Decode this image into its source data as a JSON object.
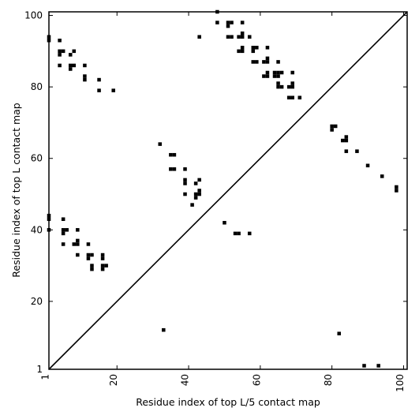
{
  "chart_data": {
    "type": "heatmap",
    "title": "",
    "xlabel": "Residue index of top L/5 contact map",
    "ylabel": "Residue index of top L contact map",
    "xlim": [
      1,
      101
    ],
    "ylim": [
      1,
      101
    ],
    "x_ticks": [
      1,
      20,
      40,
      60,
      80,
      100
    ],
    "y_ticks": [
      1,
      20,
      40,
      60,
      80,
      100
    ],
    "x_tick_labels": [
      "1",
      "20",
      "40",
      "60",
      "80",
      "100"
    ],
    "y_tick_labels": [
      "1",
      "20",
      "40",
      "60",
      "80",
      "100"
    ],
    "grid": false,
    "diagonal_line": true,
    "cell_color": "#000000",
    "background_color": "#ffffff",
    "points": [
      [
        1,
        94
      ],
      [
        1,
        93
      ],
      [
        4,
        93
      ],
      [
        4,
        90
      ],
      [
        4,
        89
      ],
      [
        5,
        90
      ],
      [
        4,
        86
      ],
      [
        7,
        89
      ],
      [
        7,
        86
      ],
      [
        7,
        85
      ],
      [
        8,
        86
      ],
      [
        8,
        90
      ],
      [
        11,
        86
      ],
      [
        11,
        83
      ],
      [
        11,
        82
      ],
      [
        15,
        82
      ],
      [
        15,
        79
      ],
      [
        19,
        79
      ],
      [
        43,
        94
      ],
      [
        48,
        101
      ],
      [
        48,
        98
      ],
      [
        51,
        98
      ],
      [
        51,
        97
      ],
      [
        52,
        98
      ],
      [
        51,
        94
      ],
      [
        52,
        94
      ],
      [
        54,
        94
      ],
      [
        55,
        95
      ],
      [
        55,
        94
      ],
      [
        55,
        98
      ],
      [
        54,
        90
      ],
      [
        55,
        90
      ],
      [
        55,
        91
      ],
      [
        57,
        94
      ],
      [
        58,
        91
      ],
      [
        58,
        90
      ],
      [
        59,
        91
      ],
      [
        58,
        87
      ],
      [
        59,
        87
      ],
      [
        61,
        87
      ],
      [
        62,
        87
      ],
      [
        62,
        88
      ],
      [
        62,
        91
      ],
      [
        61,
        83
      ],
      [
        62,
        83
      ],
      [
        62,
        84
      ],
      [
        64,
        84
      ],
      [
        65,
        84
      ],
      [
        65,
        83
      ],
      [
        64,
        83
      ],
      [
        65,
        87
      ],
      [
        66,
        84
      ],
      [
        65,
        81
      ],
      [
        65,
        80
      ],
      [
        66,
        80
      ],
      [
        68,
        80
      ],
      [
        69,
        80
      ],
      [
        69,
        81
      ],
      [
        69,
        84
      ],
      [
        68,
        77
      ],
      [
        69,
        77
      ],
      [
        71,
        77
      ],
      [
        32,
        64
      ],
      [
        35,
        61
      ],
      [
        36,
        61
      ],
      [
        35,
        57
      ],
      [
        36,
        57
      ],
      [
        39,
        57
      ],
      [
        39,
        54
      ],
      [
        39,
        53
      ],
      [
        42,
        53
      ],
      [
        43,
        54
      ],
      [
        43,
        51
      ],
      [
        43,
        50
      ],
      [
        42,
        50
      ],
      [
        42,
        49
      ],
      [
        39,
        50
      ],
      [
        41,
        47
      ],
      [
        80,
        69
      ],
      [
        81,
        69
      ],
      [
        80,
        68
      ],
      [
        83,
        65
      ],
      [
        84,
        65
      ],
      [
        84,
        66
      ],
      [
        84,
        62
      ],
      [
        87,
        62
      ],
      [
        90,
        58
      ],
      [
        94,
        55
      ],
      [
        98,
        52
      ],
      [
        98,
        51
      ],
      [
        1,
        44
      ],
      [
        1,
        43
      ],
      [
        5,
        43
      ],
      [
        1,
        40
      ],
      [
        5,
        40
      ],
      [
        6,
        40
      ],
      [
        5,
        39
      ],
      [
        9,
        40
      ],
      [
        5,
        36
      ],
      [
        8,
        36
      ],
      [
        9,
        36
      ],
      [
        9,
        37
      ],
      [
        12,
        36
      ],
      [
        9,
        33
      ],
      [
        12,
        33
      ],
      [
        13,
        33
      ],
      [
        12,
        32
      ],
      [
        16,
        33
      ],
      [
        16,
        32
      ],
      [
        13,
        30
      ],
      [
        13,
        29
      ],
      [
        16,
        30
      ],
      [
        17,
        30
      ],
      [
        16,
        29
      ],
      [
        50,
        42
      ],
      [
        53,
        39
      ],
      [
        54,
        39
      ],
      [
        57,
        39
      ],
      [
        33,
        12
      ],
      [
        82,
        11
      ],
      [
        89,
        2
      ],
      [
        93,
        2
      ]
    ]
  }
}
